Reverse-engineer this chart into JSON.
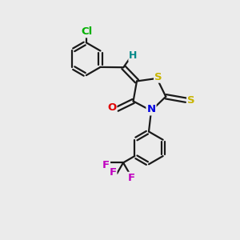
{
  "bg_color": "#ebebeb",
  "bond_color": "#1a1a1a",
  "atom_colors": {
    "S": "#c8b400",
    "N": "#0000e0",
    "O": "#e00000",
    "Cl": "#00b000",
    "F": "#c000c0",
    "H": "#008888",
    "C": "#1a1a1a"
  },
  "bond_lw": 1.6,
  "font_size": 9.5
}
